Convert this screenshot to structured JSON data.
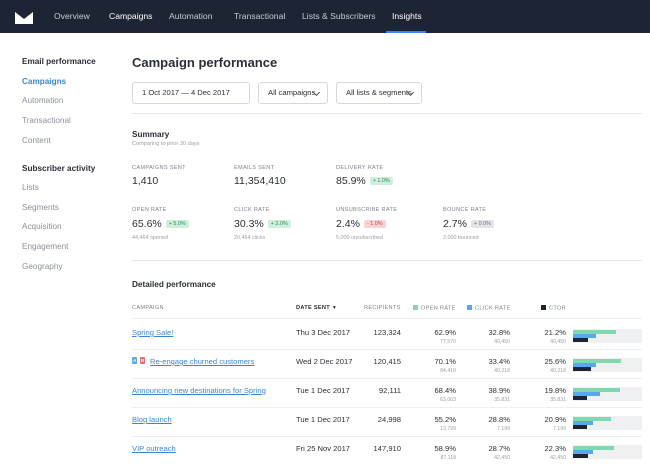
{
  "nav": {
    "logo_icon": "envelope-logo-icon",
    "items": [
      "Overview",
      "Campaigns",
      "Automation",
      "Transactional",
      "Lists & Subscribers",
      "Insights"
    ]
  },
  "sidebar": {
    "email_heading": "Email performance",
    "email_items": [
      "Campaigns",
      "Automation",
      "Transactional",
      "Content"
    ],
    "subscriber_heading": "Subscriber activity",
    "subscriber_items": [
      "Lists",
      "Segments",
      "Acquisition",
      "Engagement",
      "Geography"
    ]
  },
  "main": {
    "title": "Campaign performance",
    "filters": {
      "date_range": "1 Oct 2017 — 4 Dec 2017",
      "campaigns": "All campaigns",
      "lists": "All lists & segments"
    }
  },
  "summary": {
    "title": "Summary",
    "subtitle": "Comparing to prior 30 days",
    "metrics": [
      {
        "label": "CAMPAIGNS SENT",
        "value": "1,410",
        "badge": "",
        "sub": ""
      },
      {
        "label": "EMAILS SENT",
        "value": "11,354,410",
        "badge": "",
        "sub": ""
      },
      {
        "label": "DELIVERY RATE",
        "value": "85.9%",
        "badge": "+ 1.0%",
        "sub": ""
      },
      {
        "label": "OPEN RATE",
        "value": "65.6%",
        "badge": "+ 5.0%",
        "sub": "44,464 opened"
      },
      {
        "label": "CLICK RATE",
        "value": "30.3%",
        "badge": "+ 2.0%",
        "sub": "20,464 clicks"
      },
      {
        "label": "UNSUBSCRIBE RATE",
        "value": "2.4%",
        "badge": "- 1.0%",
        "sub": "5,000 unsubscribed"
      },
      {
        "label": "BOUNCE RATE",
        "value": "2.7%",
        "badge": "+ 0.0%",
        "sub": "2,000 bounced"
      }
    ]
  },
  "detailed": {
    "title": "Detailed performance",
    "columns": {
      "campaign": "CAMPAIGN",
      "date_sent": "DATE SENT",
      "recipients": "RECIPIENTS",
      "open_rate": "OPEN RATE",
      "click_rate": "CLICK RATE",
      "ctor": "CTOR"
    },
    "colors": {
      "open": "#7fd8b0",
      "click": "#5aa7ec",
      "ctor": "#1d2433"
    },
    "rows": [
      {
        "campaign": "Spring Sale!",
        "ab": false,
        "date": "Thu 3 Dec 2017",
        "recipients": "123,324",
        "open": "62.9%",
        "open_sub": "77,570",
        "click": "32.8%",
        "click_sub": "40,450",
        "ctor": "21.2%",
        "ctor_sub": "40,450",
        "open_v": 62.9,
        "click_v": 32.8,
        "ctor_v": 21.2
      },
      {
        "campaign": "Re-engage churned customers",
        "ab": true,
        "ab_a": "A",
        "ab_b": "B",
        "date": "Wed 2 Dec 2017",
        "recipients": "120,415",
        "open": "70.1%",
        "open_sub": "84,410",
        "click": "33.4%",
        "click_sub": "40,218",
        "ctor": "25.6%",
        "ctor_sub": "40,218",
        "open_v": 70.1,
        "click_v": 33.4,
        "ctor_v": 25.6
      },
      {
        "campaign": "Announcing new destinations for Spring",
        "ab": false,
        "date": "Tue 1 Dec 2017",
        "recipients": "92,111",
        "open": "68.4%",
        "open_sub": "63,003",
        "click": "38.9%",
        "click_sub": "35,831",
        "ctor": "19.8%",
        "ctor_sub": "35,831",
        "open_v": 68.4,
        "click_v": 38.9,
        "ctor_v": 19.8
      },
      {
        "campaign": "Blog launch",
        "ab": false,
        "date": "Tue 1 Dec 2017",
        "recipients": "24,998",
        "open": "55.2%",
        "open_sub": "13,799",
        "click": "28.8%",
        "click_sub": "7,199",
        "ctor": "20.9%",
        "ctor_sub": "7,199",
        "open_v": 55.2,
        "click_v": 28.8,
        "ctor_v": 20.9
      },
      {
        "campaign": "VIP outreach",
        "ab": false,
        "date": "Fri 25 Nov 2017",
        "recipients": "147,910",
        "open": "58.9%",
        "open_sub": "87,118",
        "click": "28.7%",
        "click_sub": "42,450",
        "ctor": "22.3%",
        "ctor_sub": "42,450",
        "open_v": 58.9,
        "click_v": 28.7,
        "ctor_v": 22.3
      }
    ]
  }
}
